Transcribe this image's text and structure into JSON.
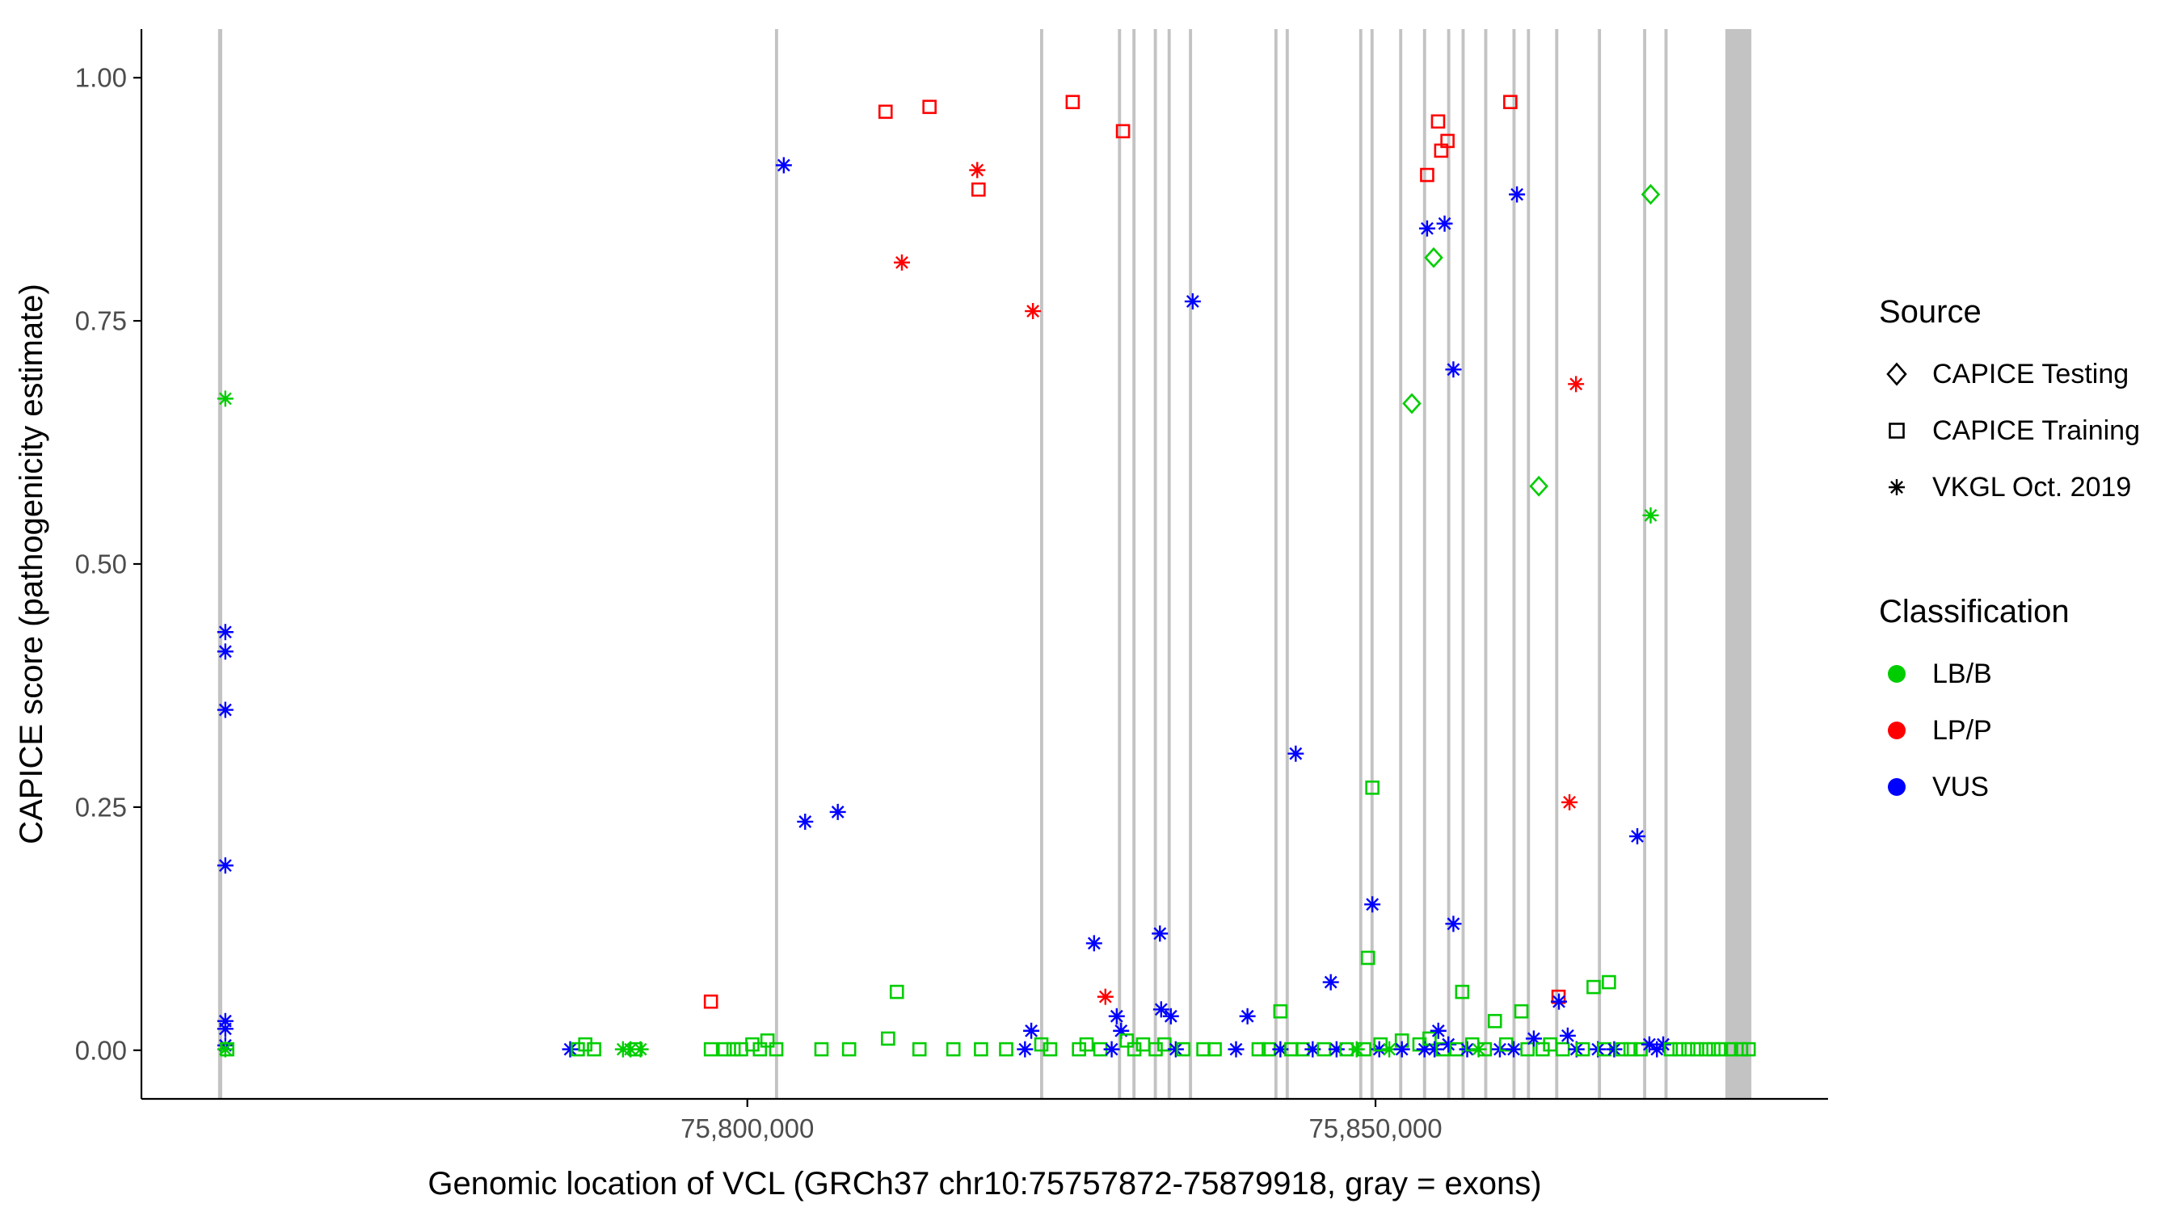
{
  "legend": {
    "source_title": "Source",
    "source_items": [
      {
        "label": "CAPICE Testing",
        "shape": "diamond"
      },
      {
        "label": "CAPICE Training",
        "shape": "square"
      },
      {
        "label": "VKGL Oct. 2019",
        "shape": "asterisk"
      }
    ],
    "classification_title": "Classification",
    "classification_items": [
      {
        "label": "LB/B",
        "color": "#00CD00"
      },
      {
        "label": "LP/P",
        "color": "#FF0000"
      },
      {
        "label": "VUS",
        "color": "#0000FF"
      }
    ]
  },
  "chart_data": {
    "type": "scatter",
    "title": "",
    "xlabel": "Genomic location of VCL (GRCh37 chr10:75757872-75879918, gray = exons)",
    "ylabel": "CAPICE score (pathogenicity estimate)",
    "x_domain": [
      75751770,
      75886020
    ],
    "y_domain": [
      -0.05,
      1.05
    ],
    "x_ticks": [
      {
        "value": 75800000,
        "label": "75,800,000"
      },
      {
        "value": 75850000,
        "label": "75,850,000"
      }
    ],
    "y_ticks": [
      {
        "value": 0.0,
        "label": "0.00"
      },
      {
        "value": 0.25,
        "label": "0.25"
      },
      {
        "value": 0.5,
        "label": "0.50"
      },
      {
        "value": 0.75,
        "label": "0.75"
      },
      {
        "value": 1.0,
        "label": "1.00"
      }
    ],
    "grid": false,
    "legend_position": "right",
    "exon_color": "#C3C3C3",
    "axis_color": "#000000",
    "tick_label_color": "#4D4D4D",
    "colors": {
      "LB/B": "#00CD00",
      "LP/P": "#FF0000",
      "VUS": "#0000FF"
    },
    "shapes": {
      "CAPICE Testing": "diamond",
      "CAPICE Training": "square",
      "VKGL Oct. 2019": "asterisk"
    },
    "exons": [
      [
        75757872,
        75758200
      ],
      [
        75802200,
        75802450
      ],
      [
        75823300,
        75823550
      ],
      [
        75829500,
        75829750
      ],
      [
        75830650,
        75830900
      ],
      [
        75832350,
        75832600
      ],
      [
        75833450,
        75833700
      ],
      [
        75835150,
        75835400
      ],
      [
        75841950,
        75842200
      ],
      [
        75842850,
        75843100
      ],
      [
        75848700,
        75848950
      ],
      [
        75849600,
        75849850
      ],
      [
        75851880,
        75852130
      ],
      [
        75853780,
        75854030
      ],
      [
        75855700,
        75855950
      ],
      [
        75856850,
        75857100
      ],
      [
        75858650,
        75858900
      ],
      [
        75860900,
        75861150
      ],
      [
        75862050,
        75862300
      ],
      [
        75864300,
        75864550
      ],
      [
        75867700,
        75867950
      ],
      [
        75871300,
        75871550
      ],
      [
        75873000,
        75873250
      ],
      [
        75877850,
        75879918
      ]
    ],
    "points": [
      [
        75758450,
        0.67,
        "LB/B",
        "asterisk"
      ],
      [
        75758450,
        0.43,
        "VUS",
        "asterisk"
      ],
      [
        75758450,
        0.41,
        "VUS",
        "asterisk"
      ],
      [
        75758450,
        0.35,
        "VUS",
        "asterisk"
      ],
      [
        75758450,
        0.19,
        "VUS",
        "asterisk"
      ],
      [
        75758450,
        0.03,
        "VUS",
        "asterisk"
      ],
      [
        75758450,
        0.022,
        "VUS",
        "asterisk"
      ],
      [
        75758450,
        0.005,
        "VUS",
        "asterisk"
      ],
      [
        75758450,
        0.001,
        "LB/B",
        "asterisk"
      ],
      [
        75758600,
        0.001,
        "LB/B",
        "square"
      ],
      [
        75785900,
        0.001,
        "VUS",
        "asterisk"
      ],
      [
        75786500,
        0.001,
        "LB/B",
        "square"
      ],
      [
        75787100,
        0.006,
        "LB/B",
        "square"
      ],
      [
        75787800,
        0.001,
        "LB/B",
        "square"
      ],
      [
        75790100,
        0.001,
        "LB/B",
        "asterisk"
      ],
      [
        75790700,
        0.001,
        "LB/B",
        "asterisk"
      ],
      [
        75791100,
        0.001,
        "LB/B",
        "square"
      ],
      [
        75791500,
        0.001,
        "LB/B",
        "asterisk"
      ],
      [
        75797100,
        0.05,
        "LP/P",
        "square"
      ],
      [
        75797100,
        0.001,
        "LB/B",
        "square"
      ],
      [
        75798200,
        0.001,
        "LB/B",
        "square"
      ],
      [
        75798900,
        0.001,
        "LB/B",
        "square"
      ],
      [
        75799500,
        0.001,
        "LB/B",
        "square"
      ],
      [
        75800400,
        0.006,
        "LB/B",
        "square"
      ],
      [
        75801000,
        0.001,
        "LB/B",
        "square"
      ],
      [
        75801600,
        0.01,
        "LB/B",
        "square"
      ],
      [
        75802300,
        0.001,
        "LB/B",
        "square"
      ],
      [
        75802900,
        0.91,
        "VUS",
        "asterisk"
      ],
      [
        75804600,
        0.235,
        "VUS",
        "asterisk"
      ],
      [
        75807200,
        0.245,
        "VUS",
        "asterisk"
      ],
      [
        75805900,
        0.001,
        "LB/B",
        "square"
      ],
      [
        75808100,
        0.001,
        "LB/B",
        "square"
      ],
      [
        75811000,
        0.965,
        "LP/P",
        "square"
      ],
      [
        75814500,
        0.97,
        "LP/P",
        "square"
      ],
      [
        75812300,
        0.81,
        "LP/P",
        "asterisk"
      ],
      [
        75818300,
        0.905,
        "LP/P",
        "asterisk"
      ],
      [
        75818400,
        0.885,
        "LP/P",
        "square"
      ],
      [
        75811900,
        0.06,
        "LB/B",
        "square"
      ],
      [
        75811200,
        0.012,
        "LB/B",
        "square"
      ],
      [
        75813700,
        0.001,
        "LB/B",
        "square"
      ],
      [
        75816400,
        0.001,
        "LB/B",
        "square"
      ],
      [
        75818600,
        0.001,
        "LB/B",
        "square"
      ],
      [
        75820600,
        0.001,
        "LB/B",
        "square"
      ],
      [
        75822730,
        0.76,
        "LP/P",
        "asterisk"
      ],
      [
        75822100,
        0.001,
        "VUS",
        "asterisk"
      ],
      [
        75822600,
        0.02,
        "VUS",
        "asterisk"
      ],
      [
        75823400,
        0.006,
        "LB/B",
        "square"
      ],
      [
        75824100,
        0.001,
        "LB/B",
        "square"
      ],
      [
        75825900,
        0.975,
        "LP/P",
        "square"
      ],
      [
        75829900,
        0.945,
        "LP/P",
        "square"
      ],
      [
        75827600,
        0.11,
        "VUS",
        "asterisk"
      ],
      [
        75828500,
        0.055,
        "LP/P",
        "asterisk"
      ],
      [
        75829400,
        0.035,
        "VUS",
        "asterisk"
      ],
      [
        75829750,
        0.02,
        "VUS",
        "asterisk"
      ],
      [
        75826400,
        0.001,
        "LB/B",
        "square"
      ],
      [
        75827000,
        0.006,
        "LB/B",
        "square"
      ],
      [
        75828100,
        0.001,
        "LB/B",
        "square"
      ],
      [
        75829000,
        0.001,
        "VUS",
        "asterisk"
      ],
      [
        75830200,
        0.01,
        "LB/B",
        "square"
      ],
      [
        75830800,
        0.001,
        "LB/B",
        "square"
      ],
      [
        75831500,
        0.006,
        "LB/B",
        "square"
      ],
      [
        75832840,
        0.12,
        "VUS",
        "asterisk"
      ],
      [
        75832940,
        0.042,
        "VUS",
        "asterisk"
      ],
      [
        75833710,
        0.035,
        "VUS",
        "asterisk"
      ],
      [
        75832500,
        0.001,
        "LB/B",
        "square"
      ],
      [
        75833200,
        0.006,
        "LB/B",
        "square"
      ],
      [
        75834100,
        0.001,
        "VUS",
        "asterisk"
      ],
      [
        75834700,
        0.001,
        "LB/B",
        "square"
      ],
      [
        75835450,
        0.77,
        "VUS",
        "asterisk"
      ],
      [
        75836300,
        0.001,
        "LB/B",
        "square"
      ],
      [
        75837200,
        0.001,
        "LB/B",
        "square"
      ],
      [
        75838900,
        0.001,
        "VUS",
        "asterisk"
      ],
      [
        75839810,
        0.035,
        "VUS",
        "asterisk"
      ],
      [
        75840700,
        0.001,
        "LB/B",
        "square"
      ],
      [
        75841500,
        0.001,
        "LB/B",
        "square"
      ],
      [
        75842430,
        0.04,
        "LB/B",
        "square"
      ],
      [
        75842430,
        0.001,
        "VUS",
        "asterisk"
      ],
      [
        75843650,
        0.305,
        "VUS",
        "asterisk"
      ],
      [
        75843300,
        0.001,
        "LB/B",
        "square"
      ],
      [
        75844200,
        0.001,
        "LB/B",
        "square"
      ],
      [
        75845000,
        0.001,
        "VUS",
        "asterisk"
      ],
      [
        75845900,
        0.001,
        "LB/B",
        "square"
      ],
      [
        75846440,
        0.07,
        "VUS",
        "asterisk"
      ],
      [
        75846900,
        0.001,
        "VUS",
        "asterisk"
      ],
      [
        75847700,
        0.001,
        "LB/B",
        "square"
      ],
      [
        75848500,
        0.001,
        "LB/B",
        "asterisk"
      ],
      [
        75849400,
        0.095,
        "LB/B",
        "square"
      ],
      [
        75849750,
        0.27,
        "LB/B",
        "square"
      ],
      [
        75849750,
        0.15,
        "VUS",
        "asterisk"
      ],
      [
        75849100,
        0.001,
        "LB/B",
        "square"
      ],
      [
        75850300,
        0.001,
        "VUS",
        "asterisk"
      ],
      [
        75850400,
        0.006,
        "LB/B",
        "square"
      ],
      [
        75851100,
        0.001,
        "LB/B",
        "asterisk"
      ],
      [
        75852100,
        0.01,
        "LB/B",
        "square"
      ],
      [
        75852100,
        0.001,
        "VUS",
        "asterisk"
      ],
      [
        75854110,
        0.845,
        "VUS",
        "asterisk"
      ],
      [
        75855500,
        0.85,
        "VUS",
        "asterisk"
      ],
      [
        75854630,
        0.815,
        "LB/B",
        "diamond"
      ],
      [
        75852890,
        0.665,
        "LB/B",
        "diamond"
      ],
      [
        75854110,
        0.9,
        "LP/P",
        "square"
      ],
      [
        75854980,
        0.955,
        "LP/P",
        "square"
      ],
      [
        75855230,
        0.925,
        "LP/P",
        "square"
      ],
      [
        75855730,
        0.935,
        "LP/P",
        "square"
      ],
      [
        75856200,
        0.7,
        "VUS",
        "asterisk"
      ],
      [
        75856200,
        0.13,
        "VUS",
        "asterisk"
      ],
      [
        75853500,
        0.006,
        "LB/B",
        "square"
      ],
      [
        75853900,
        0.001,
        "VUS",
        "asterisk"
      ],
      [
        75854300,
        0.012,
        "LB/B",
        "square"
      ],
      [
        75854700,
        0.001,
        "VUS",
        "asterisk"
      ],
      [
        75855000,
        0.02,
        "VUS",
        "asterisk"
      ],
      [
        75855350,
        0.001,
        "LB/B",
        "square"
      ],
      [
        75855800,
        0.006,
        "VUS",
        "asterisk"
      ],
      [
        75856450,
        0.001,
        "LB/B",
        "square"
      ],
      [
        75856900,
        0.06,
        "LB/B",
        "square"
      ],
      [
        75857300,
        0.001,
        "VUS",
        "asterisk"
      ],
      [
        75857700,
        0.006,
        "LB/B",
        "square"
      ],
      [
        75858200,
        0.001,
        "LB/B",
        "asterisk"
      ],
      [
        75858700,
        0.001,
        "LB/B",
        "square"
      ],
      [
        75860730,
        0.975,
        "LP/P",
        "square"
      ],
      [
        75861260,
        0.88,
        "VUS",
        "asterisk"
      ],
      [
        75863000,
        0.58,
        "LB/B",
        "diamond"
      ],
      [
        75859500,
        0.03,
        "LB/B",
        "square"
      ],
      [
        75859900,
        0.001,
        "VUS",
        "asterisk"
      ],
      [
        75860400,
        0.006,
        "LB/B",
        "square"
      ],
      [
        75861000,
        0.001,
        "VUS",
        "asterisk"
      ],
      [
        75861610,
        0.04,
        "LB/B",
        "square"
      ],
      [
        75862100,
        0.001,
        "LB/B",
        "square"
      ],
      [
        75862600,
        0.012,
        "VUS",
        "asterisk"
      ],
      [
        75863300,
        0.001,
        "LB/B",
        "square"
      ],
      [
        75863900,
        0.006,
        "LB/B",
        "square"
      ],
      [
        75864570,
        0.055,
        "LP/P",
        "square"
      ],
      [
        75864600,
        0.05,
        "VUS",
        "asterisk"
      ],
      [
        75864900,
        0.001,
        "LB/B",
        "square"
      ],
      [
        75865440,
        0.255,
        "LP/P",
        "asterisk"
      ],
      [
        75865960,
        0.685,
        "LP/P",
        "asterisk"
      ],
      [
        75865300,
        0.015,
        "VUS",
        "asterisk"
      ],
      [
        75866000,
        0.001,
        "VUS",
        "asterisk"
      ],
      [
        75866500,
        0.001,
        "LB/B",
        "square"
      ],
      [
        75867360,
        0.065,
        "LB/B",
        "square"
      ],
      [
        75868580,
        0.07,
        "LB/B",
        "square"
      ],
      [
        75867700,
        0.001,
        "VUS",
        "asterisk"
      ],
      [
        75868200,
        0.001,
        "LB/B",
        "square"
      ],
      [
        75869000,
        0.001,
        "VUS",
        "asterisk"
      ],
      [
        75869600,
        0.001,
        "LB/B",
        "square"
      ],
      [
        75870840,
        0.22,
        "VUS",
        "asterisk"
      ],
      [
        75871900,
        0.88,
        "LB/B",
        "diamond"
      ],
      [
        75871900,
        0.55,
        "LB/B",
        "asterisk"
      ],
      [
        75870300,
        0.001,
        "LB/B",
        "square"
      ],
      [
        75871100,
        0.001,
        "LB/B",
        "square"
      ],
      [
        75871800,
        0.006,
        "VUS",
        "asterisk"
      ],
      [
        75872400,
        0.001,
        "VUS",
        "asterisk"
      ],
      [
        75872900,
        0.006,
        "VUS",
        "asterisk"
      ],
      [
        75873500,
        0.001,
        "LB/B",
        "square"
      ],
      [
        75874200,
        0.001,
        "LB/B",
        "square"
      ],
      [
        75874900,
        0.001,
        "LB/B",
        "square"
      ],
      [
        75875600,
        0.001,
        "LB/B",
        "square"
      ],
      [
        75876300,
        0.001,
        "LB/B",
        "square"
      ],
      [
        75876900,
        0.001,
        "LB/B",
        "square"
      ],
      [
        75877500,
        0.001,
        "LB/B",
        "square"
      ],
      [
        75878300,
        0.001,
        "LB/B",
        "square"
      ],
      [
        75879100,
        0.001,
        "LB/B",
        "square"
      ],
      [
        75879700,
        0.001,
        "LB/B",
        "square"
      ]
    ]
  }
}
